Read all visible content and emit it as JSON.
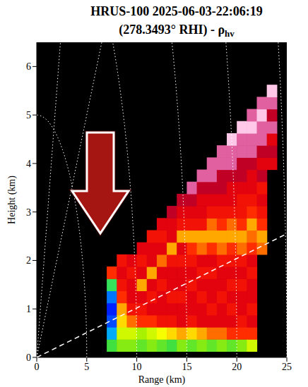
{
  "chart_data": {
    "type": "heatmap",
    "title": [
      "HRUS-100  2025-06-03-22:06:19",
      "(278.3493° RHI) - ρhv"
    ],
    "title_subscript": "hv",
    "x_label": "Range (km)",
    "y_label": "Height (km)",
    "xlim": [
      0,
      25
    ],
    "ylim": [
      0,
      6.5
    ],
    "xticks": [
      0,
      5,
      10,
      15,
      20,
      25
    ],
    "yticks": [
      0,
      1,
      2,
      3,
      4,
      5,
      6
    ],
    "grid": false,
    "tick_labels": true,
    "cells": {
      "color_range": [
        0.6,
        1.0
      ],
      "x": [
        7.5,
        8.5,
        9.5,
        10.5,
        11.5,
        12.5,
        13.5,
        14.5,
        15.5,
        16.5,
        17.5,
        18.5,
        19.5,
        20.5,
        21.5,
        22.5,
        23.5
      ],
      "y": [
        0.25,
        0.5,
        0.75,
        1,
        1.25,
        1.5,
        1.75,
        2,
        2.25,
        2.5,
        2.75,
        3,
        3.25,
        3.5,
        3.75,
        4,
        4.25,
        4.5,
        4.75,
        5,
        5.25,
        5.5
      ],
      "z": [
        [
          0.86,
          0.75,
          0.7,
          0.68,
          0.72,
          0.85,
          0.95
        ],
        [
          0.88,
          0.9,
          0.92,
          0.93,
          0.95,
          0.96,
          0.97,
          0.96
        ],
        [
          0.88,
          0.9,
          0.94,
          0.96,
          0.97,
          0.97,
          0.96,
          0.97
        ],
        [
          0.87,
          0.89,
          0.95,
          0.96,
          0.97,
          0.93,
          0.97,
          0.96,
          0.97
        ],
        [
          0.88,
          0.9,
          0.95,
          0.97,
          0.96,
          0.97,
          0.93,
          0.97,
          0.97,
          0.96
        ],
        [
          0.87,
          0.91,
          0.96,
          0.97,
          0.97,
          0.96,
          0.97,
          0.94,
          0.97,
          0.96,
          0.97
        ],
        [
          0.86,
          0.92,
          0.96,
          0.97,
          0.96,
          0.97,
          0.97,
          0.96,
          0.93,
          0.97,
          0.97,
          0.98
        ],
        [
          0.88,
          0.93,
          0.97,
          0.97,
          0.96,
          0.97,
          0.97,
          0.96,
          0.97,
          0.93,
          0.96,
          0.97,
          0.98
        ],
        [
          0.87,
          0.92,
          0.96,
          0.97,
          0.97,
          0.96,
          0.97,
          0.96,
          0.95,
          0.93,
          0.96,
          0.97,
          0.98,
          0.99
        ],
        [
          0.88,
          0.93,
          0.97,
          0.97,
          0.96,
          0.97,
          0.96,
          0.97,
          0.94,
          0.93,
          0.96,
          0.97,
          0.97,
          0.98,
          0.99
        ],
        [
          0.87,
          0.94,
          0.97,
          0.96,
          0.97,
          0.97,
          0.96,
          0.97,
          0.95,
          0.93,
          0.94,
          0.96,
          0.97,
          0.98,
          0.99,
          0.99
        ],
        [
          0.88,
          0.94,
          0.97,
          0.97,
          0.96,
          0.97,
          0.97,
          0.96,
          0.94,
          0.93,
          0.95,
          0.96,
          0.97,
          0.98,
          0.98,
          0.99,
          0.99
        ],
        [
          0.87,
          0.95,
          0.97,
          0.96,
          0.97,
          0.96,
          0.97,
          0.96,
          0.95,
          0.93,
          0.94,
          0.96,
          0.97,
          0.97,
          0.98,
          0.99,
          0.99,
          1.0
        ],
        [
          0.88,
          0.95,
          0.96,
          0.97,
          0.97,
          0.96,
          0.97,
          0.96,
          0.94,
          0.93,
          0.95,
          0.96,
          0.96,
          0.97,
          0.98,
          0.98,
          0.99,
          0.99,
          1.0
        ],
        [
          0.9,
          0.95,
          0.97,
          0.96,
          0.97,
          0.97,
          0.96,
          0.97,
          0.95,
          0.94,
          0.93,
          0.95,
          0.96,
          0.97,
          0.97,
          0.98,
          0.99,
          0.99,
          1.0,
          0.99
        ],
        [
          null,
          null,
          null,
          null,
          null,
          null,
          null,
          null,
          0.94,
          0.93,
          0.95,
          0.96,
          0.97,
          0.96,
          0.98,
          0.97,
          0.98,
          0.99,
          0.99,
          1.0,
          0.99
        ],
        [
          null,
          null,
          null,
          null,
          null,
          null,
          null,
          null,
          null,
          null,
          null,
          null,
          null,
          null,
          null,
          0.97,
          0.98,
          0.97,
          0.99,
          0.98,
          0.99,
          1.0
        ]
      ]
    },
    "beam_line": {
      "x": [
        0,
        25
      ],
      "y": [
        0,
        2.55
      ],
      "color": "#ffffff",
      "line_style": "dashed"
    },
    "range_rings": {
      "values": [
        5,
        10,
        15,
        20,
        25
      ],
      "color": "#ffffff",
      "line_style": "dotted"
    },
    "elevation_lines": {
      "values": [
        45,
        70
      ],
      "color": "#ffffff",
      "line_style": "dotted"
    }
  }
}
